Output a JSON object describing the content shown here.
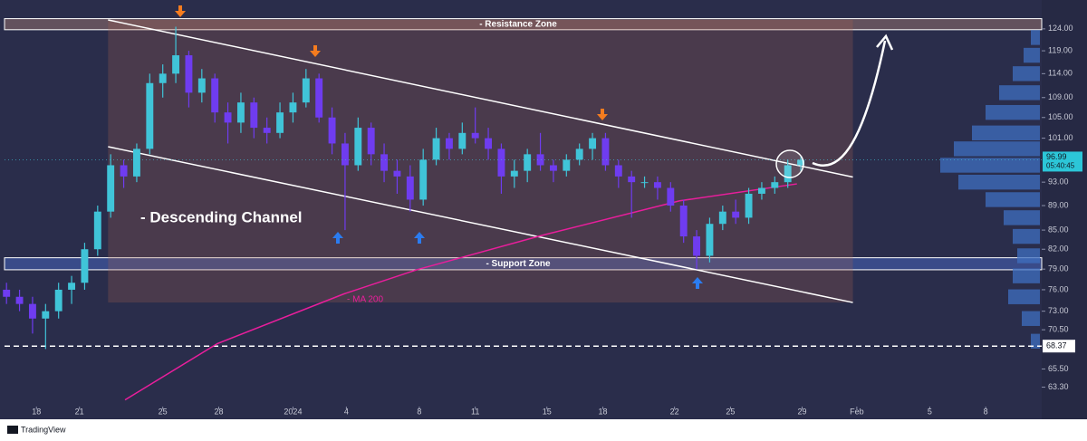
{
  "chart_data": {
    "type": "candlestick",
    "log_scale": true,
    "up_color": "#40c4d8",
    "down_color": "#6f3cf0",
    "x": [
      0,
      1,
      2,
      3,
      4,
      5,
      6,
      7,
      8,
      9,
      10,
      11,
      12,
      13,
      14,
      15,
      16,
      17,
      18,
      19,
      20,
      21,
      22,
      23,
      24,
      25,
      26,
      27,
      28,
      29,
      30,
      31,
      32,
      33,
      34,
      35,
      36,
      37,
      38,
      39,
      40,
      41,
      42,
      43,
      44,
      45,
      46,
      47,
      48,
      49,
      50,
      51,
      52,
      53,
      54,
      55,
      56,
      57,
      58,
      59,
      60,
      61
    ],
    "open": [
      76,
      75,
      74,
      72,
      73,
      76,
      77,
      82,
      88,
      96,
      94,
      99,
      112,
      114,
      118,
      110,
      113,
      106,
      104,
      108,
      103,
      102,
      106,
      108,
      113,
      105,
      100,
      96,
      103,
      98,
      95,
      94,
      90,
      97,
      101,
      99,
      102,
      101,
      99,
      94,
      95,
      98,
      96,
      95,
      97,
      99,
      101,
      96,
      94,
      93,
      93,
      92,
      89,
      84,
      81,
      86,
      88,
      87,
      91,
      92,
      93,
      96
    ],
    "high": [
      77,
      76,
      75,
      74,
      77,
      78,
      83,
      89,
      98,
      97,
      100,
      114,
      116,
      124.5,
      119,
      115,
      114,
      108,
      110,
      109,
      105,
      108,
      110,
      115,
      114,
      107,
      102,
      105,
      104,
      100,
      97,
      96,
      99,
      103,
      102,
      104,
      107,
      103,
      100,
      97,
      99,
      102,
      97,
      98,
      100,
      102,
      102,
      97,
      95,
      94,
      94,
      93,
      90,
      85,
      87,
      89,
      90,
      92,
      93,
      94,
      97,
      97.5
    ],
    "low": [
      74,
      73,
      70,
      68,
      72,
      74,
      76,
      81,
      87,
      92,
      93,
      98,
      109,
      112,
      107,
      108,
      104,
      100,
      102,
      101,
      100,
      101,
      104,
      107,
      104,
      98,
      85,
      95,
      96,
      93,
      91,
      88,
      89,
      96,
      97,
      98,
      100,
      97,
      91,
      92,
      93,
      95,
      93,
      94,
      96,
      97,
      95,
      92,
      87,
      92,
      90,
      88,
      83,
      79,
      80,
      85,
      86,
      86,
      90,
      91,
      92,
      95
    ],
    "close": [
      75,
      74,
      72,
      73,
      76,
      77,
      82,
      88,
      96,
      94,
      99,
      112,
      114,
      118,
      110,
      113,
      106,
      104,
      108,
      103,
      102,
      106,
      108,
      113,
      105,
      100,
      96,
      103,
      98,
      95,
      94,
      90,
      97,
      101,
      99,
      102,
      101,
      99,
      94,
      95,
      98,
      96,
      95,
      97,
      99,
      101,
      96,
      94,
      93,
      93,
      92,
      89,
      84,
      81,
      86,
      88,
      87,
      91,
      92,
      93,
      96,
      96.99
    ],
    "xlim": [
      -0.5,
      79.5
    ],
    "xticks": [
      {
        "value": 2.3,
        "label": "18"
      },
      {
        "value": 5.6,
        "label": "21"
      },
      {
        "value": 12.0,
        "label": "25"
      },
      {
        "value": 16.3,
        "label": "28"
      },
      {
        "value": 22.0,
        "label": "2024"
      },
      {
        "value": 26.1,
        "label": "4"
      },
      {
        "value": 31.7,
        "label": "8"
      },
      {
        "value": 36.0,
        "label": "11"
      },
      {
        "value": 41.5,
        "label": "15"
      },
      {
        "value": 45.8,
        "label": "18"
      },
      {
        "value": 51.3,
        "label": "22"
      },
      {
        "value": 55.6,
        "label": "25"
      },
      {
        "value": 61.1,
        "label": "29"
      },
      {
        "value": 65.3,
        "label": "Feb"
      },
      {
        "value": 70.9,
        "label": "5"
      },
      {
        "value": 75.2,
        "label": "8"
      }
    ],
    "ylim": [
      59.6,
      130.9
    ],
    "yticks": [
      {
        "value": 124,
        "label": "124.00"
      },
      {
        "value": 119,
        "label": "119.00"
      },
      {
        "value": 114,
        "label": "114.00"
      },
      {
        "value": 109,
        "label": "109.00"
      },
      {
        "value": 105,
        "label": "105.00"
      },
      {
        "value": 101,
        "label": "101.00"
      },
      {
        "value": 93,
        "label": "93.00"
      },
      {
        "value": 89,
        "label": "89.00"
      },
      {
        "value": 85,
        "label": "85.00"
      },
      {
        "value": 82,
        "label": "82.00"
      },
      {
        "value": 79,
        "label": "79.00"
      },
      {
        "value": 76,
        "label": "76.00"
      },
      {
        "value": 73,
        "label": "73.00"
      },
      {
        "value": 70.5,
        "label": "70.50"
      },
      {
        "value": 65.5,
        "label": "65.50"
      },
      {
        "value": 63.3,
        "label": "63.30"
      }
    ],
    "ma": {
      "name": "- MA 200",
      "color": "#e91e9c",
      "x": [
        9.1,
        16.2,
        25.9,
        31.5,
        41.2,
        51.7,
        60.7
      ],
      "values": [
        61.8,
        68.7,
        75.4,
        78.9,
        84.2,
        89.8,
        92.7
      ]
    },
    "channel": {
      "label": "- Descending Channel",
      "x": [
        7.8,
        65.0
      ],
      "upper": [
        126.1,
        93.9
      ],
      "lower": [
        99.4,
        74.2
      ]
    },
    "zones": [
      {
        "label": "- Resistance Zone",
        "range": [
          123.8,
          126.4
        ]
      },
      {
        "label": "- Support Zone",
        "range": [
          78.9,
          80.7
        ]
      }
    ],
    "last_price": 96.99,
    "countdown": "05:40:45",
    "level": 68.37,
    "volume_profile": {
      "color": "#3f6fc0",
      "prices": [
        122,
        118,
        114,
        110,
        106,
        102,
        99,
        96,
        93,
        90,
        87,
        84,
        81,
        78,
        75,
        72,
        69
      ],
      "volumes": [
        10,
        18,
        30,
        45,
        60,
        75,
        95,
        110,
        90,
        60,
        40,
        30,
        25,
        30,
        35,
        20,
        10
      ]
    }
  },
  "footer": {
    "brand": "TradingView"
  }
}
